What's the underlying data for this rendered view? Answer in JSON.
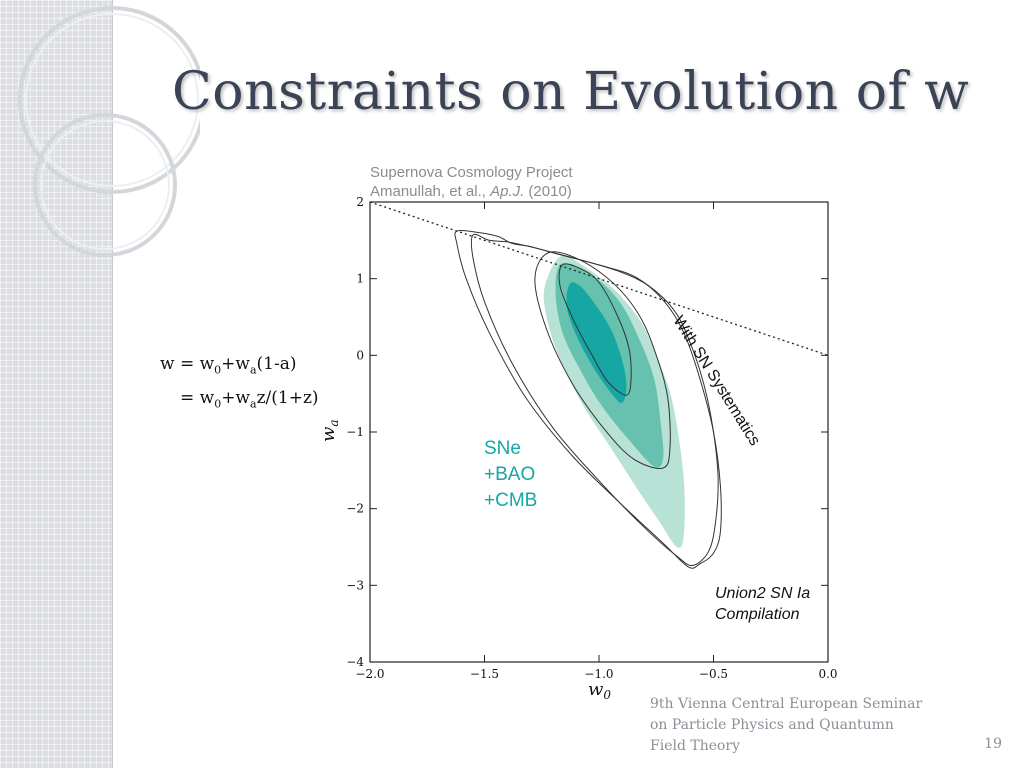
{
  "slide": {
    "title": "Constraints on Evolution of w",
    "page_number": "19",
    "footer": [
      "9th Vienna Central European Seminar",
      "on Particle Physics and Quantumn",
      "Field Theory"
    ]
  },
  "formula": {
    "line1": {
      "w_eq": "w = w",
      "sub0": "0",
      "plus_w": "+w",
      "suba": "a",
      "rest": "(1-a)"
    },
    "line2": {
      "eq_w": "= w",
      "sub0": "0",
      "plus_w": "+w",
      "suba": "a",
      "rest": "z/(1+z)"
    }
  },
  "chart_data": {
    "type": "contour",
    "credit_line1": "Supernova Cosmology Project",
    "credit_line2_prefix": "Amanullah, et al., ",
    "credit_journal": "Ap.J.",
    "credit_year": " (2010)",
    "xlabel_main": "w",
    "xlabel_sub": "0",
    "ylabel_main": "w",
    "ylabel_sub": "a",
    "xlim": [
      -2.0,
      0.0
    ],
    "ylim": [
      -4,
      2
    ],
    "xticks": [
      -2.0,
      -1.5,
      -1.0,
      -0.5,
      0.0
    ],
    "yticks": [
      2,
      1,
      0,
      -1,
      -2,
      -3,
      -4
    ],
    "xtick_labels": [
      "−2.0",
      "−1.5",
      "−1.0",
      "−0.5",
      "0.0"
    ],
    "ytick_labels": [
      "2",
      "1",
      "0",
      "−1",
      "−2",
      "−3",
      "−4"
    ],
    "dotted_line": [
      [
        -2.0,
        2.0
      ],
      [
        0.0,
        0.0
      ]
    ],
    "annotations": {
      "systematics": "With SN Systematics",
      "combo": [
        "SNe",
        "+BAO",
        "+CMB"
      ],
      "compilation": [
        "Union2 SN Ia",
        "Compilation"
      ]
    },
    "series": [
      {
        "level": "filled-outer",
        "color": "#b7e2d5",
        "points": [
          [
            -1.16,
            1.3
          ],
          [
            -1.22,
            1.05
          ],
          [
            -1.24,
            0.7
          ],
          [
            -1.19,
            0.1
          ],
          [
            -1.08,
            -0.6
          ],
          [
            -0.95,
            -1.2
          ],
          [
            -0.82,
            -1.8
          ],
          [
            -0.74,
            -2.15
          ],
          [
            -0.66,
            -2.5
          ],
          [
            -0.63,
            -2.35
          ],
          [
            -0.63,
            -1.6
          ],
          [
            -0.68,
            -0.6
          ],
          [
            -0.75,
            0.0
          ],
          [
            -0.82,
            0.45
          ],
          [
            -0.93,
            0.85
          ],
          [
            -1.06,
            1.15
          ]
        ]
      },
      {
        "level": "filled-middle",
        "color": "#66c2ae",
        "points": [
          [
            -1.16,
            1.2
          ],
          [
            -1.19,
            0.85
          ],
          [
            -1.16,
            0.3
          ],
          [
            -1.08,
            -0.2
          ],
          [
            -0.99,
            -0.65
          ],
          [
            -0.87,
            -1.1
          ],
          [
            -0.76,
            -1.45
          ],
          [
            -0.72,
            -1.35
          ],
          [
            -0.73,
            -0.9
          ],
          [
            -0.76,
            -0.3
          ],
          [
            -0.83,
            0.25
          ],
          [
            -0.91,
            0.7
          ],
          [
            -1.02,
            1.02
          ]
        ]
      },
      {
        "level": "filled-inner",
        "color": "#16a6a4",
        "points": [
          [
            -1.13,
            0.92
          ],
          [
            -1.14,
            0.62
          ],
          [
            -1.09,
            0.2
          ],
          [
            -1.02,
            -0.18
          ],
          [
            -0.95,
            -0.48
          ],
          [
            -0.9,
            -0.62
          ],
          [
            -0.88,
            -0.4
          ],
          [
            -0.9,
            -0.05
          ],
          [
            -0.95,
            0.35
          ],
          [
            -1.03,
            0.72
          ],
          [
            -1.09,
            0.92
          ]
        ]
      },
      {
        "level": "line-inner-sys",
        "color": "#333333",
        "points": [
          [
            -1.16,
            1.18
          ],
          [
            -1.17,
            0.9
          ],
          [
            -1.11,
            0.45
          ],
          [
            -1.03,
            0.0
          ],
          [
            -0.96,
            -0.35
          ],
          [
            -0.88,
            -0.52
          ],
          [
            -0.86,
            -0.3
          ],
          [
            -0.87,
            0.1
          ],
          [
            -0.92,
            0.52
          ],
          [
            -1.0,
            0.95
          ],
          [
            -1.08,
            1.13
          ]
        ]
      },
      {
        "level": "line-middle-sys",
        "color": "#333333",
        "points": [
          [
            -1.22,
            1.34
          ],
          [
            -1.28,
            1.0
          ],
          [
            -1.23,
            0.35
          ],
          [
            -1.12,
            -0.35
          ],
          [
            -0.98,
            -0.95
          ],
          [
            -0.85,
            -1.35
          ],
          [
            -0.72,
            -1.47
          ],
          [
            -0.69,
            -1.2
          ],
          [
            -0.7,
            -0.55
          ],
          [
            -0.75,
            0.0
          ],
          [
            -0.82,
            0.5
          ],
          [
            -0.93,
            0.92
          ],
          [
            -1.08,
            1.24
          ]
        ]
      },
      {
        "level": "line-outer-sys",
        "color": "#333333",
        "points": [
          [
            -1.55,
            1.57
          ],
          [
            -1.48,
            1.5
          ],
          [
            -1.4,
            1.48
          ],
          [
            -1.32,
            1.43
          ],
          [
            -1.2,
            1.34
          ],
          [
            -1.05,
            1.22
          ],
          [
            -0.9,
            1.08
          ],
          [
            -0.78,
            0.9
          ],
          [
            -0.67,
            0.58
          ],
          [
            -0.6,
            0.15
          ],
          [
            -0.54,
            -0.4
          ],
          [
            -0.5,
            -1.0
          ],
          [
            -0.48,
            -1.6
          ],
          [
            -0.49,
            -2.15
          ],
          [
            -0.52,
            -2.55
          ],
          [
            -0.59,
            -2.74
          ],
          [
            -0.66,
            -2.62
          ],
          [
            -0.8,
            -2.25
          ],
          [
            -0.98,
            -1.7
          ],
          [
            -1.2,
            -0.95
          ],
          [
            -1.38,
            -0.1
          ],
          [
            -1.5,
            0.7
          ],
          [
            -1.55,
            1.27
          ]
        ]
      },
      {
        "level": "line-outermost",
        "color": "#333333",
        "points": [
          [
            -1.62,
            1.62
          ],
          [
            -1.52,
            1.6
          ],
          [
            -1.44,
            1.55
          ],
          [
            -1.38,
            1.46
          ],
          [
            -1.3,
            1.42
          ],
          [
            -1.18,
            1.32
          ],
          [
            -1.0,
            1.18
          ],
          [
            -0.84,
            1.02
          ],
          [
            -0.72,
            0.72
          ],
          [
            -0.63,
            0.3
          ],
          [
            -0.56,
            -0.3
          ],
          [
            -0.5,
            -1.0
          ],
          [
            -0.47,
            -1.7
          ],
          [
            -0.47,
            -2.3
          ],
          [
            -0.5,
            -2.58
          ],
          [
            -0.56,
            -2.72
          ],
          [
            -0.61,
            -2.76
          ],
          [
            -0.72,
            -2.45
          ],
          [
            -0.9,
            -1.95
          ],
          [
            -1.12,
            -1.3
          ],
          [
            -1.32,
            -0.55
          ],
          [
            -1.48,
            0.3
          ],
          [
            -1.58,
            1.0
          ],
          [
            -1.62,
            1.45
          ]
        ]
      }
    ]
  },
  "colors": {
    "title": "#3b4457",
    "accent_text": "#16a6a4",
    "credit_text": "#8c8c8c",
    "footer_text": "#8b8f96",
    "sidebar": "#dcdee2"
  }
}
